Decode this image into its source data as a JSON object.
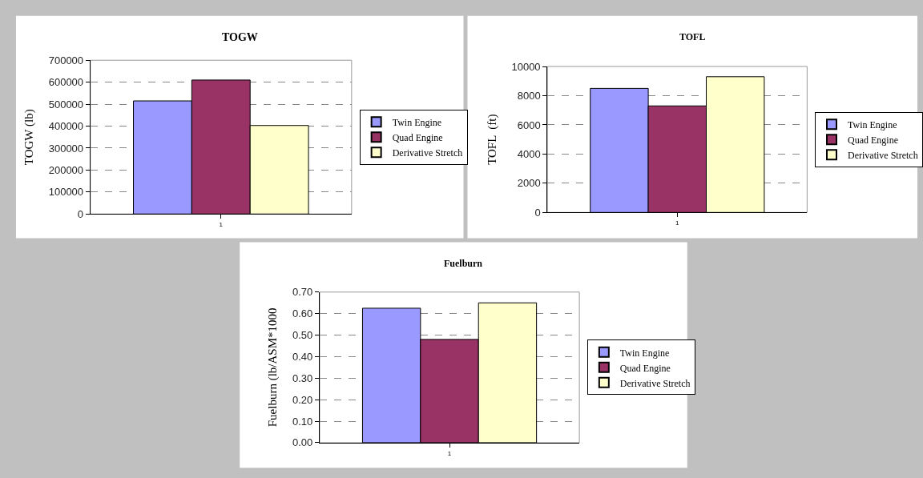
{
  "chart_data": [
    {
      "type": "bar",
      "title": "TOGW",
      "ylabel": "TOGW (lb)",
      "categories": [
        "1"
      ],
      "series": [
        {
          "name": "Twin Engine",
          "color": "#9999ff",
          "values": [
            515000
          ]
        },
        {
          "name": "Quad Engine",
          "color": "#993366",
          "values": [
            610000
          ]
        },
        {
          "name": "Derivative Stretch",
          "color": "#ffffcc",
          "values": [
            403000
          ]
        }
      ],
      "ylim": [
        0,
        700000
      ],
      "yticks": [
        0,
        100000,
        200000,
        300000,
        400000,
        500000,
        600000,
        700000
      ],
      "grid": "y",
      "legend": "right"
    },
    {
      "type": "bar",
      "title": "TOFL",
      "ylabel": "TOFL  (ft)",
      "categories": [
        "1"
      ],
      "series": [
        {
          "name": "Twin Engine",
          "color": "#9999ff",
          "values": [
            8500
          ]
        },
        {
          "name": "Quad Engine",
          "color": "#993366",
          "values": [
            7300
          ]
        },
        {
          "name": "Derivative Stretch",
          "color": "#ffffcc",
          "values": [
            9300
          ]
        }
      ],
      "ylim": [
        0,
        10000
      ],
      "yticks": [
        0,
        2000,
        4000,
        6000,
        8000,
        10000
      ],
      "grid": "y",
      "legend": "right"
    },
    {
      "type": "bar",
      "title": "Fuelburn",
      "ylabel": "Fuelburn (lb/ASM*1000",
      "categories": [
        "1"
      ],
      "series": [
        {
          "name": "Twin Engine",
          "color": "#9999ff",
          "values": [
            0.625
          ]
        },
        {
          "name": "Quad Engine",
          "color": "#993366",
          "values": [
            0.48
          ]
        },
        {
          "name": "Derivative Stretch",
          "color": "#ffffcc",
          "values": [
            0.65
          ]
        }
      ],
      "ylim": [
        0,
        0.7
      ],
      "yticks": [
        {
          "value": 0,
          "label": "0.00"
        },
        {
          "value": 0.1,
          "label": "0.10"
        },
        {
          "value": 0.2,
          "label": "0.20"
        },
        {
          "value": 0.3,
          "label": "0.30"
        },
        {
          "value": 0.4,
          "label": "0.40"
        },
        {
          "value": 0.5,
          "label": "0.50"
        },
        {
          "value": 0.6,
          "label": "0.60"
        },
        {
          "value": 0.7,
          "label": "0.70"
        }
      ],
      "grid": "y",
      "legend": "right"
    }
  ]
}
